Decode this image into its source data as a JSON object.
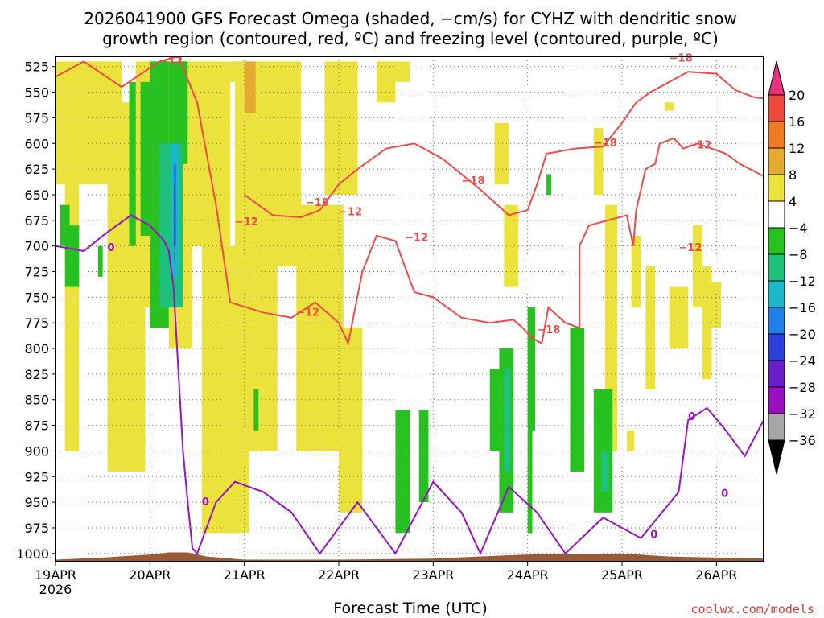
{
  "chart_data": {
    "type": "time-height cross-section",
    "title_line1": "2026041900 GFS Forecast Omega (shaded, −cm/s) for CYHZ with dendritic snow",
    "title_line2": "growth region (contoured, red, ºC) and freezing level (contoured, purple, ºC)",
    "xlabel": "Forecast Time (UTC)",
    "credit": "coolwx.com/models",
    "x_days": [
      0,
      1,
      2,
      3,
      4,
      5,
      6,
      7
    ],
    "x_tick_labels": [
      "19APR",
      "20APR",
      "21APR",
      "22APR",
      "23APR",
      "24APR",
      "25APR",
      "26APR"
    ],
    "x_year_label": "2026",
    "xlim_days": [
      0,
      7.5
    ],
    "y_levels_hpa": [
      525,
      550,
      575,
      600,
      625,
      650,
      675,
      700,
      725,
      750,
      775,
      800,
      825,
      850,
      875,
      900,
      925,
      950,
      975,
      1000
    ],
    "y_tick_labels": [
      "525",
      "550",
      "575",
      "600",
      "625",
      "650",
      "675",
      "700",
      "725",
      "750",
      "775",
      "800",
      "825",
      "850",
      "875",
      "900",
      "925",
      "950",
      "975",
      "1000"
    ],
    "ylim_hpa": [
      515,
      1008
    ],
    "colorbar": {
      "labels": [
        "20",
        "16",
        "12",
        "8",
        "4",
        "−4",
        "−8",
        "−12",
        "−16",
        "−20",
        "−24",
        "−28",
        "−32",
        "−36"
      ],
      "values": [
        20,
        16,
        12,
        8,
        4,
        -4,
        -8,
        -12,
        -16,
        -20,
        -24,
        -28,
        -32,
        -36
      ],
      "colors": [
        "#e8317a",
        "#ee4a3c",
        "#ee7b22",
        "#e7aa30",
        "#ece23c",
        "#ffffff",
        "#27c21f",
        "#1ec17a",
        "#1ab9c9",
        "#1f7fe8",
        "#2d3fd9",
        "#6a1ec8",
        "#9a0fc0",
        "#a6a6a6",
        "#000000"
      ]
    },
    "contour_labels_red": [
      "−12",
      "−18",
      "−12",
      "−18",
      "−12",
      "−18",
      "−12",
      "−18",
      "−12",
      "−12",
      "−12",
      "−18"
    ],
    "contour_labels_purple": [
      "0",
      "0",
      "0",
      "0",
      "0"
    ],
    "contour_red_12": [
      [
        0,
        535
      ],
      [
        0.3,
        520
      ],
      [
        0.7,
        545
      ],
      [
        1.1,
        520
      ],
      [
        1.3,
        515
      ],
      [
        1.5,
        560
      ],
      [
        1.6,
        610
      ],
      [
        1.7,
        660
      ],
      [
        1.85,
        755
      ],
      [
        2.2,
        765
      ],
      [
        2.5,
        770
      ],
      [
        2.75,
        755
      ],
      [
        3,
        775
      ],
      [
        3.1,
        795
      ],
      [
        3.25,
        725
      ],
      [
        3.4,
        690
      ],
      [
        3.6,
        695
      ],
      [
        3.8,
        745
      ],
      [
        4,
        750
      ],
      [
        4.3,
        770
      ],
      [
        4.6,
        775
      ],
      [
        4.85,
        772
      ],
      [
        4.95,
        780
      ],
      [
        5.05,
        790
      ],
      [
        5.15,
        795
      ],
      [
        5.22,
        760
      ],
      [
        5.4,
        775
      ],
      [
        5.55,
        780
      ],
      [
        5.55,
        700
      ],
      [
        5.65,
        680
      ],
      [
        6.05,
        670
      ],
      [
        6.12,
        700
      ],
      [
        6.15,
        665
      ],
      [
        6.25,
        625
      ],
      [
        6.35,
        620
      ],
      [
        6.4,
        600
      ],
      [
        6.55,
        595
      ],
      [
        6.65,
        605
      ],
      [
        6.8,
        600
      ],
      [
        6.95,
        605
      ],
      [
        7.1,
        610
      ],
      [
        7.25,
        620
      ],
      [
        7.5,
        632
      ]
    ],
    "contour_red_18": [
      [
        2,
        650
      ],
      [
        2.3,
        670
      ],
      [
        2.6,
        672
      ],
      [
        2.8,
        665
      ],
      [
        3,
        640
      ],
      [
        3.2,
        625
      ],
      [
        3.5,
        605
      ],
      [
        3.8,
        600
      ],
      [
        4.1,
        615
      ],
      [
        4.5,
        645
      ],
      [
        4.8,
        670
      ],
      [
        5,
        665
      ],
      [
        5.1,
        640
      ],
      [
        5.2,
        610
      ],
      [
        5.5,
        605
      ],
      [
        5.8,
        603
      ],
      [
        6,
        580
      ],
      [
        6.15,
        560
      ],
      [
        6.3,
        550
      ],
      [
        6.5,
        540
      ],
      [
        6.7,
        530
      ],
      [
        7,
        532
      ],
      [
        7.2,
        548
      ],
      [
        7.4,
        555
      ],
      [
        7.5,
        556
      ]
    ],
    "contour_purple_0": [
      [
        0,
        700
      ],
      [
        0.3,
        705
      ],
      [
        0.5,
        690
      ],
      [
        0.8,
        670
      ],
      [
        1,
        680
      ],
      [
        1.15,
        695
      ],
      [
        1.2,
        705
      ],
      [
        1.25,
        740
      ],
      [
        1.3,
        820
      ],
      [
        1.35,
        900
      ],
      [
        1.4,
        950
      ],
      [
        1.45,
        995
      ],
      [
        1.5,
        1000
      ],
      [
        1.7,
        950
      ],
      [
        1.9,
        930
      ],
      [
        2.2,
        940
      ],
      [
        2.5,
        960
      ],
      [
        2.8,
        1000
      ],
      [
        3.2,
        950
      ],
      [
        3.4,
        975
      ],
      [
        3.6,
        1000
      ],
      [
        4,
        930
      ],
      [
        4.3,
        960
      ],
      [
        4.5,
        1000
      ],
      [
        4.8,
        935
      ],
      [
        5.1,
        960
      ],
      [
        5.4,
        1000
      ],
      [
        5.8,
        965
      ],
      [
        6.2,
        985
      ],
      [
        6.6,
        940
      ],
      [
        6.7,
        870
      ],
      [
        6.9,
        858
      ],
      [
        7.1,
        880
      ],
      [
        7.3,
        905
      ],
      [
        7.5,
        870
      ]
    ]
  }
}
